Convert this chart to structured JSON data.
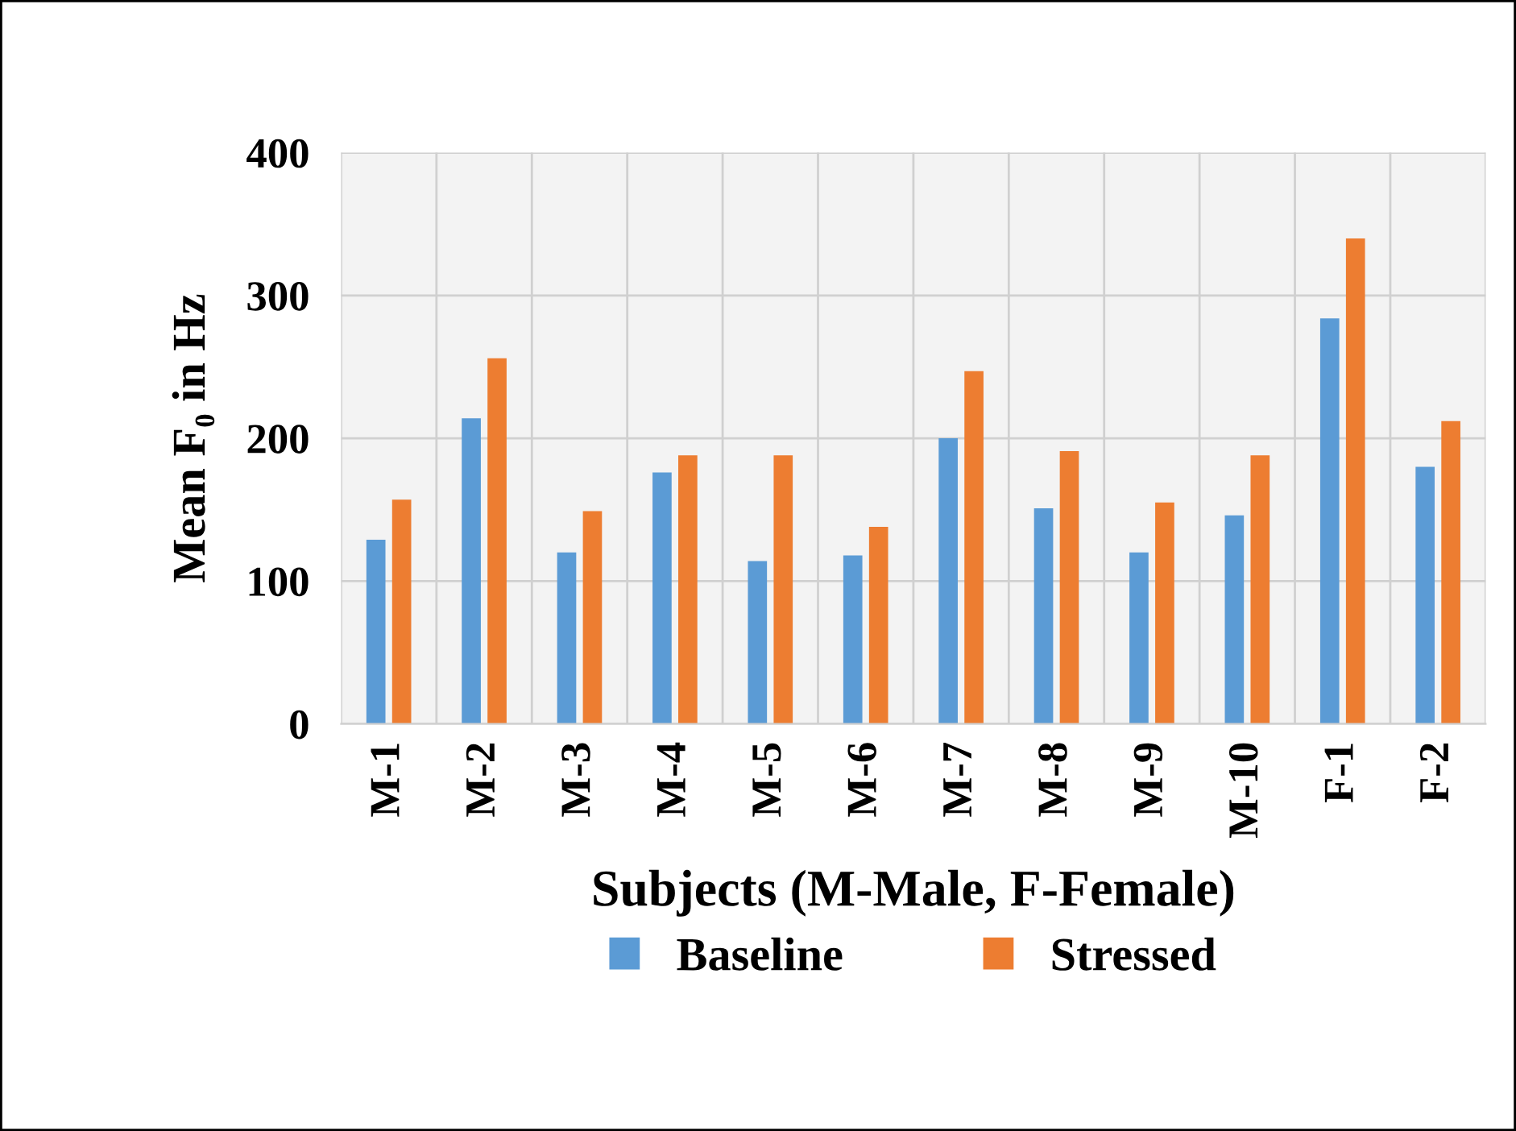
{
  "chart_data": {
    "type": "bar",
    "xlabel": "Subjects (M-Male, F-Female)",
    "ylabel": "Mean F₀ in Hz",
    "categories": [
      "M-1",
      "M-2",
      "M-3",
      "M-4",
      "M-5",
      "M-6",
      "M-7",
      "M-8",
      "M-9",
      "M-10",
      "F-1",
      "F-2"
    ],
    "series": [
      {
        "name": "Baseline",
        "color": "#5b9bd5",
        "values": [
          129,
          214,
          120,
          176,
          114,
          118,
          200,
          151,
          120,
          146,
          284,
          180
        ]
      },
      {
        "name": "Stressed",
        "color": "#ed7d31",
        "values": [
          157,
          256,
          149,
          188,
          188,
          138,
          247,
          191,
          155,
          188,
          340,
          212
        ]
      }
    ],
    "ylim": [
      0,
      400
    ],
    "yticks": [
      0,
      100,
      200,
      300,
      400
    ],
    "grid": true,
    "legend": "bottom"
  }
}
